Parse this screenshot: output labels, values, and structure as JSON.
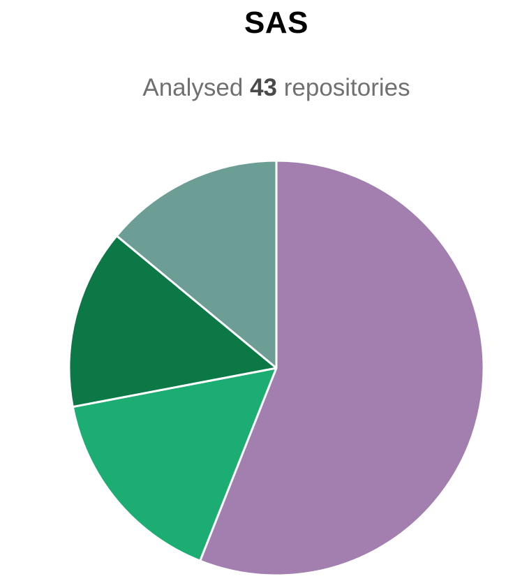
{
  "header": {
    "title": "SAS",
    "subtitle_prefix": "Analysed",
    "subtitle_count": "43",
    "subtitle_suffix": "repositories"
  },
  "chart_data": {
    "type": "pie",
    "title": "SAS",
    "subtitle": "Analysed 43 repositories",
    "start_angle_deg": 0,
    "direction": "clockwise",
    "slices": [
      {
        "value": 0.56,
        "color": "#a27fae"
      },
      {
        "value": 0.16,
        "color": "#1bad71"
      },
      {
        "value": 0.14,
        "color": "#0b7846"
      },
      {
        "value": 0.14,
        "color": "#6c9e96"
      }
    ],
    "stroke_color": "#ffffff"
  }
}
